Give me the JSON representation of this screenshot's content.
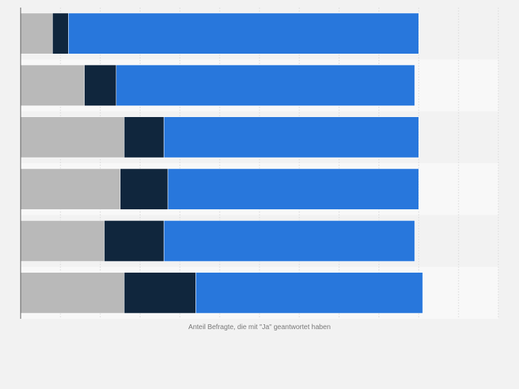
{
  "chart_data": {
    "type": "bar",
    "orientation": "horizontal",
    "stacked": true,
    "xlabel": "Anteil Befragte, die mit \"Ja\" geantwortet haben",
    "xlim": [
      0,
      120
    ],
    "grid": true,
    "legend": "none",
    "rows": 6,
    "series": [
      {
        "values": [
          8,
          16,
          26,
          25,
          21,
          26
        ],
        "color": "#b9b9b9"
      },
      {
        "values": [
          4,
          8,
          10,
          12,
          15,
          18
        ],
        "color": "#10263d"
      },
      {
        "values": [
          88,
          75,
          64,
          63,
          63,
          57
        ],
        "color": "#2877dc"
      }
    ]
  }
}
